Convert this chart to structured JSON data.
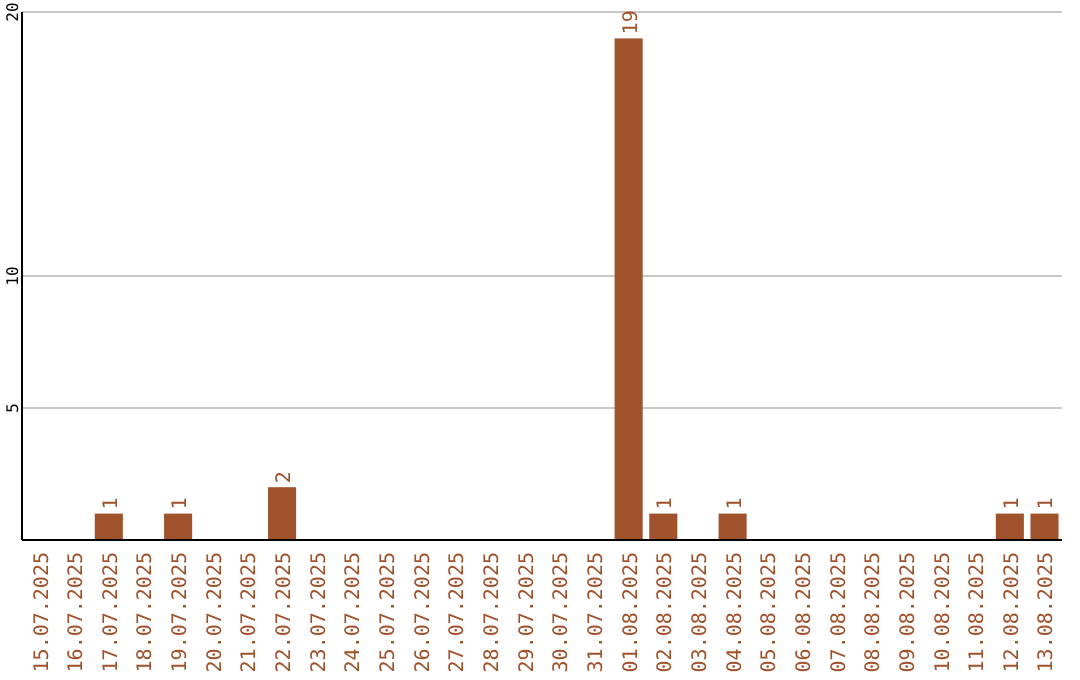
{
  "chart_data": {
    "type": "bar",
    "categories": [
      "15.07.2025",
      "16.07.2025",
      "17.07.2025",
      "18.07.2025",
      "19.07.2025",
      "20.07.2025",
      "21.07.2025",
      "22.07.2025",
      "23.07.2025",
      "24.07.2025",
      "25.07.2025",
      "26.07.2025",
      "27.07.2025",
      "28.07.2025",
      "29.07.2025",
      "30.07.2025",
      "31.07.2025",
      "01.08.2025",
      "02.08.2025",
      "03.08.2025",
      "04.08.2025",
      "05.08.2025",
      "06.08.2025",
      "07.08.2025",
      "08.08.2025",
      "09.08.2025",
      "10.08.2025",
      "11.08.2025",
      "12.08.2025",
      "13.08.2025"
    ],
    "values": [
      0,
      0,
      1,
      0,
      1,
      0,
      0,
      2,
      0,
      0,
      0,
      0,
      0,
      0,
      0,
      0,
      0,
      19,
      1,
      0,
      1,
      0,
      0,
      0,
      0,
      0,
      0,
      0,
      1,
      1
    ],
    "value_labels": [
      null,
      null,
      "1",
      null,
      "1",
      null,
      null,
      "2",
      null,
      null,
      null,
      null,
      null,
      null,
      null,
      null,
      null,
      "19",
      "1",
      null,
      "1",
      null,
      null,
      null,
      null,
      null,
      null,
      null,
      "1",
      "1"
    ],
    "color": "#a0522d",
    "ylim": [
      0,
      20
    ],
    "yticks": [
      5,
      10,
      20
    ],
    "grid": "y"
  }
}
